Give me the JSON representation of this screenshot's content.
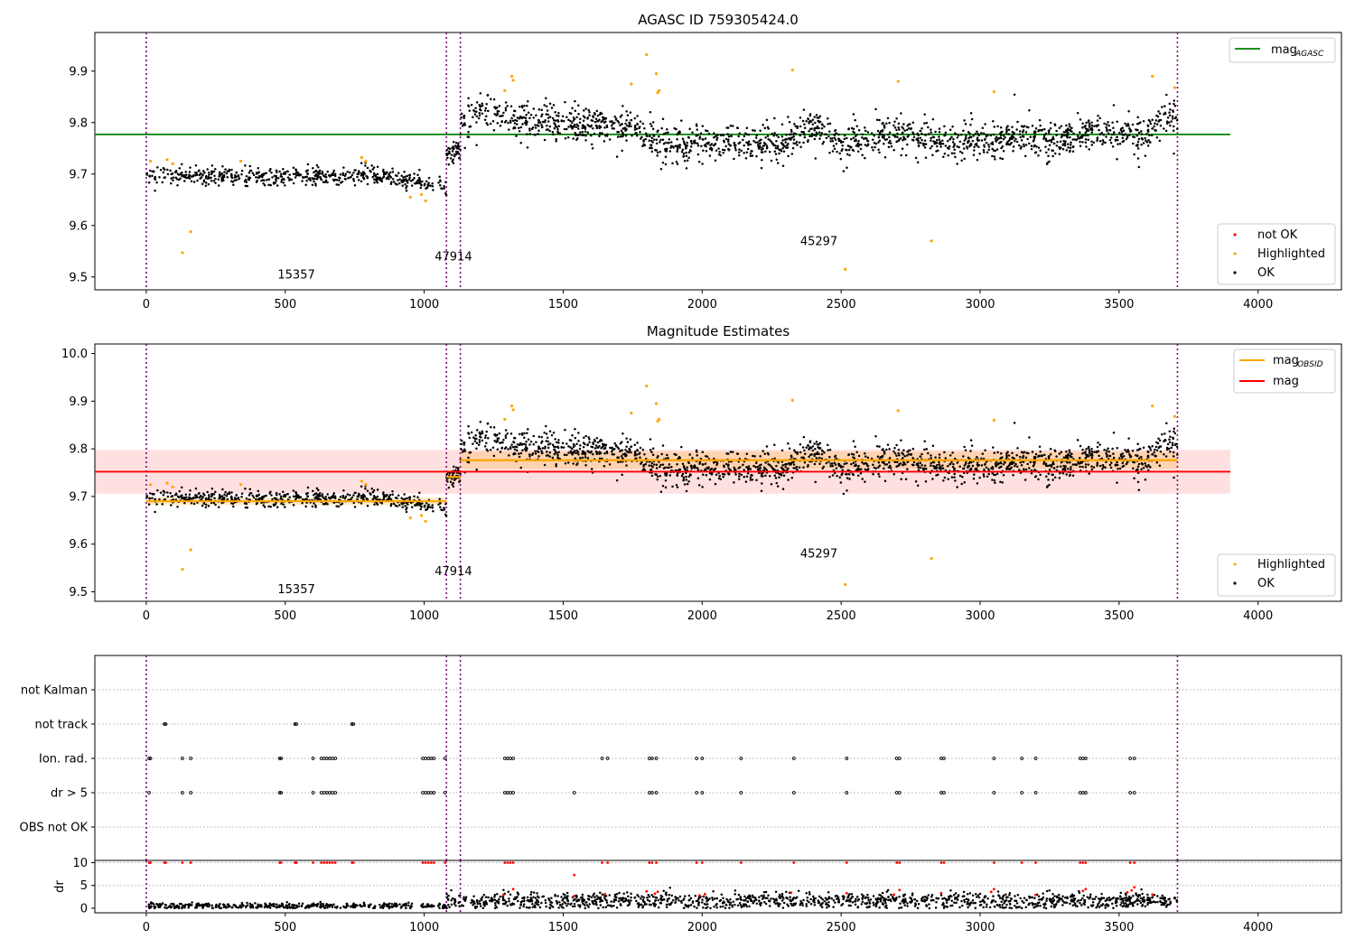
{
  "chart_data": [
    {
      "type": "scatter",
      "title": "AGASC ID 759305424.0",
      "xlim": [
        -185,
        4300
      ],
      "ylim": [
        9.475,
        9.975
      ],
      "xticks": [
        0,
        500,
        1000,
        1500,
        2000,
        2500,
        3000,
        3500,
        4000
      ],
      "yticks": [
        9.5,
        9.6,
        9.7,
        9.8,
        9.9
      ],
      "ytick_labels": [
        "9.5",
        "9.6",
        "9.7",
        "9.8",
        "9.9"
      ],
      "legend_top": {
        "position": "top-right",
        "line_label": "mag",
        "line_label_sub": "AGASC",
        "line_color": "#008000"
      },
      "legend_bottom": {
        "position": "bottom-right",
        "entries": [
          {
            "label": "not OK",
            "color": "#ff0000"
          },
          {
            "label": "Highlighted",
            "color": "#ffa500"
          },
          {
            "label": "OK",
            "color": "#000000"
          }
        ]
      },
      "mag_agasc": {
        "value": 9.777,
        "x_range": [
          -185,
          3900
        ]
      },
      "observation_boundaries": [
        0,
        1080,
        1130,
        3710
      ],
      "observation_labels": [
        {
          "text": "15357",
          "x": 540,
          "y": 9.497
        },
        {
          "text": "47914",
          "x": 1105,
          "y": 9.532
        },
        {
          "text": "45297",
          "x": 2420,
          "y": 9.562
        }
      ],
      "series": [
        {
          "name": "OK",
          "color": "#000000",
          "segments": [
            {
              "x_range": [
                0,
                1080
              ],
              "points": 540,
              "levels": [
                [
                  0,
                  9.697
                ],
                [
                  400,
                  9.695
                ],
                [
                  800,
                  9.7
                ],
                [
                  950,
                  9.686
                ],
                [
                  1080,
                  9.672
                ]
              ],
              "noise": 0.009
            },
            {
              "x_range": [
                1080,
                1130
              ],
              "points": 40,
              "levels": [
                [
                  1080,
                  9.745
                ],
                [
                  1130,
                  9.745
                ]
              ],
              "noise": 0.011
            },
            {
              "x_range": [
                1130,
                3710
              ],
              "points": 1650,
              "levels": [
                [
                  1130,
                  9.79
                ],
                [
                  1200,
                  9.825
                ],
                [
                  1300,
                  9.805
                ],
                [
                  1500,
                  9.795
                ],
                [
                  1700,
                  9.795
                ],
                [
                  1850,
                  9.76
                ],
                [
                  2000,
                  9.76
                ],
                [
                  2300,
                  9.76
                ],
                [
                  2400,
                  9.795
                ],
                [
                  2500,
                  9.76
                ],
                [
                  2700,
                  9.78
                ],
                [
                  2900,
                  9.76
                ],
                [
                  3100,
                  9.77
                ],
                [
                  3300,
                  9.77
                ],
                [
                  3450,
                  9.79
                ],
                [
                  3580,
                  9.77
                ],
                [
                  3660,
                  9.81
                ],
                [
                  3710,
                  9.805
                ]
              ],
              "noise": 0.018
            }
          ]
        },
        {
          "name": "Highlighted",
          "color": "#ffa500",
          "points": [
            [
              15,
              9.725
            ],
            [
              75,
              9.728
            ],
            [
              95,
              9.72
            ],
            [
              130,
              9.547
            ],
            [
              160,
              9.588
            ],
            [
              340,
              9.725
            ],
            [
              775,
              9.732
            ],
            [
              790,
              9.725
            ],
            [
              950,
              9.655
            ],
            [
              990,
              9.66
            ],
            [
              1005,
              9.648
            ],
            [
              1290,
              9.862
            ],
            [
              1315,
              9.89
            ],
            [
              1320,
              9.882
            ],
            [
              1745,
              9.875
            ],
            [
              1800,
              9.932
            ],
            [
              1835,
              9.895
            ],
            [
              1840,
              9.858
            ],
            [
              1845,
              9.862
            ],
            [
              2325,
              9.902
            ],
            [
              2515,
              9.515
            ],
            [
              2705,
              9.88
            ],
            [
              2825,
              9.57
            ],
            [
              3050,
              9.86
            ],
            [
              3620,
              9.89
            ],
            [
              3700,
              9.868
            ]
          ]
        }
      ]
    },
    {
      "type": "scatter",
      "title": "Magnitude Estimates",
      "xlim": [
        -185,
        4300
      ],
      "ylim": [
        9.48,
        10.02
      ],
      "xticks": [
        0,
        500,
        1000,
        1500,
        2000,
        2500,
        3000,
        3500,
        4000
      ],
      "yticks": [
        9.5,
        9.6,
        9.7,
        9.8,
        9.9,
        10.0
      ],
      "ytick_labels": [
        "9.5",
        "9.6",
        "9.7",
        "9.8",
        "9.9",
        "10.0"
      ],
      "legend_top": {
        "position": "top-right",
        "entries": [
          {
            "label": "mag",
            "sub": "OBSID",
            "color": "#ffa500"
          },
          {
            "label": "mag",
            "sub": "",
            "color": "#ff0000"
          }
        ]
      },
      "legend_bottom": {
        "position": "bottom-right",
        "entries": [
          {
            "label": "Highlighted",
            "color": "#ffa500"
          },
          {
            "label": "OK",
            "color": "#000000"
          }
        ]
      },
      "mag": {
        "value": 9.752,
        "band": [
          9.706,
          9.798
        ],
        "x_range": [
          -185,
          3900
        ],
        "color": "#ff0000"
      },
      "mag_obsid": [
        {
          "x_range": [
            0,
            1080
          ],
          "value": 9.69,
          "band": [
            9.682,
            9.698
          ]
        },
        {
          "x_range": [
            1080,
            1130
          ],
          "value": 9.741,
          "band": [
            9.733,
            9.749
          ]
        },
        {
          "x_range": [
            1130,
            3710
          ],
          "value": 9.776,
          "band": [
            9.758,
            9.794
          ]
        }
      ],
      "observation_boundaries": [
        0,
        1080,
        1130,
        3710
      ],
      "observation_labels": [
        {
          "text": "15357",
          "x": 540,
          "y": 9.497
        },
        {
          "text": "47914",
          "x": 1105,
          "y": 9.535
        },
        {
          "text": "45297",
          "x": 2420,
          "y": 9.572
        }
      ]
    },
    {
      "type": "scatter",
      "title": "",
      "xlim": [
        -185,
        4300
      ],
      "category_rows": [
        "not Kalman",
        "not track",
        "Ion. rad.",
        "dr > 5",
        "OBS not OK"
      ],
      "flag_points": {
        "not track": [
          65,
          70,
          535,
          540,
          740,
          745
        ],
        "Ion. rad.": [
          10,
          15,
          130,
          160,
          480,
          485,
          600,
          630,
          640,
          650,
          660,
          670,
          680,
          995,
          1005,
          1015,
          1025,
          1035,
          1075,
          1290,
          1300,
          1310,
          1320,
          1640,
          1660,
          1810,
          1820,
          1835,
          1980,
          2000,
          2140,
          2330,
          2520,
          2700,
          2710,
          2860,
          2870,
          3050,
          3150,
          3200,
          3360,
          3370,
          3380,
          3540,
          3555
        ],
        "dr > 5": [
          10,
          130,
          160,
          480,
          485,
          600,
          630,
          640,
          650,
          660,
          670,
          680,
          995,
          1005,
          1015,
          1025,
          1035,
          1075,
          1290,
          1300,
          1310,
          1320,
          1540,
          1810,
          1820,
          1835,
          1980,
          2000,
          2140,
          2330,
          2520,
          2700,
          2710,
          2860,
          2870,
          3050,
          3150,
          3200,
          3360,
          3370,
          3380,
          3540,
          3555
        ]
      }
    },
    {
      "type": "scatter",
      "title": "",
      "ylabel": "dr",
      "xlim": [
        -185,
        4300
      ],
      "ylim": [
        -1,
        10.5
      ],
      "xticks": [
        0,
        500,
        1000,
        1500,
        2000,
        2500,
        3000,
        3500,
        4000
      ],
      "yticks": [
        0,
        5,
        10
      ],
      "ytick_labels": [
        "0",
        "5",
        "10"
      ],
      "ok_segments": [
        {
          "x_range": [
            0,
            1080
          ],
          "points": 420,
          "base": 0.5,
          "noise": 0.35
        },
        {
          "x_range": [
            1080,
            3710
          ],
          "points": 1300,
          "base": 1.6,
          "noise": 0.9
        }
      ],
      "not_ok_capped": [
        10,
        15,
        65,
        70,
        130,
        160,
        480,
        485,
        535,
        540,
        600,
        630,
        640,
        650,
        660,
        670,
        680,
        740,
        745,
        995,
        1005,
        1015,
        1025,
        1035,
        1075,
        1290,
        1300,
        1310,
        1320,
        1640,
        1660,
        1810,
        1820,
        1835,
        1980,
        2000,
        2140,
        2330,
        2520,
        2700,
        2710,
        2860,
        2870,
        3050,
        3150,
        3200,
        3360,
        3370,
        3380,
        3540,
        3555
      ],
      "not_ok_points": [
        [
          1285,
          2.9
        ],
        [
          1320,
          4.2
        ],
        [
          1540,
          7.3
        ],
        [
          1540,
          2.7
        ],
        [
          1650,
          3.1
        ],
        [
          1800,
          3.7
        ],
        [
          1830,
          3.2
        ],
        [
          1840,
          3.6
        ],
        [
          1990,
          2.8
        ],
        [
          2010,
          3.1
        ],
        [
          2320,
          3.4
        ],
        [
          2520,
          3.3
        ],
        [
          2690,
          3.0
        ],
        [
          2710,
          4.0
        ],
        [
          2860,
          3.3
        ],
        [
          3040,
          3.6
        ],
        [
          3050,
          4.2
        ],
        [
          3200,
          2.9
        ],
        [
          3370,
          3.8
        ],
        [
          3380,
          4.2
        ],
        [
          3530,
          3.5
        ],
        [
          3545,
          3.9
        ],
        [
          3555,
          4.6
        ],
        [
          3620,
          3.0
        ]
      ]
    }
  ]
}
